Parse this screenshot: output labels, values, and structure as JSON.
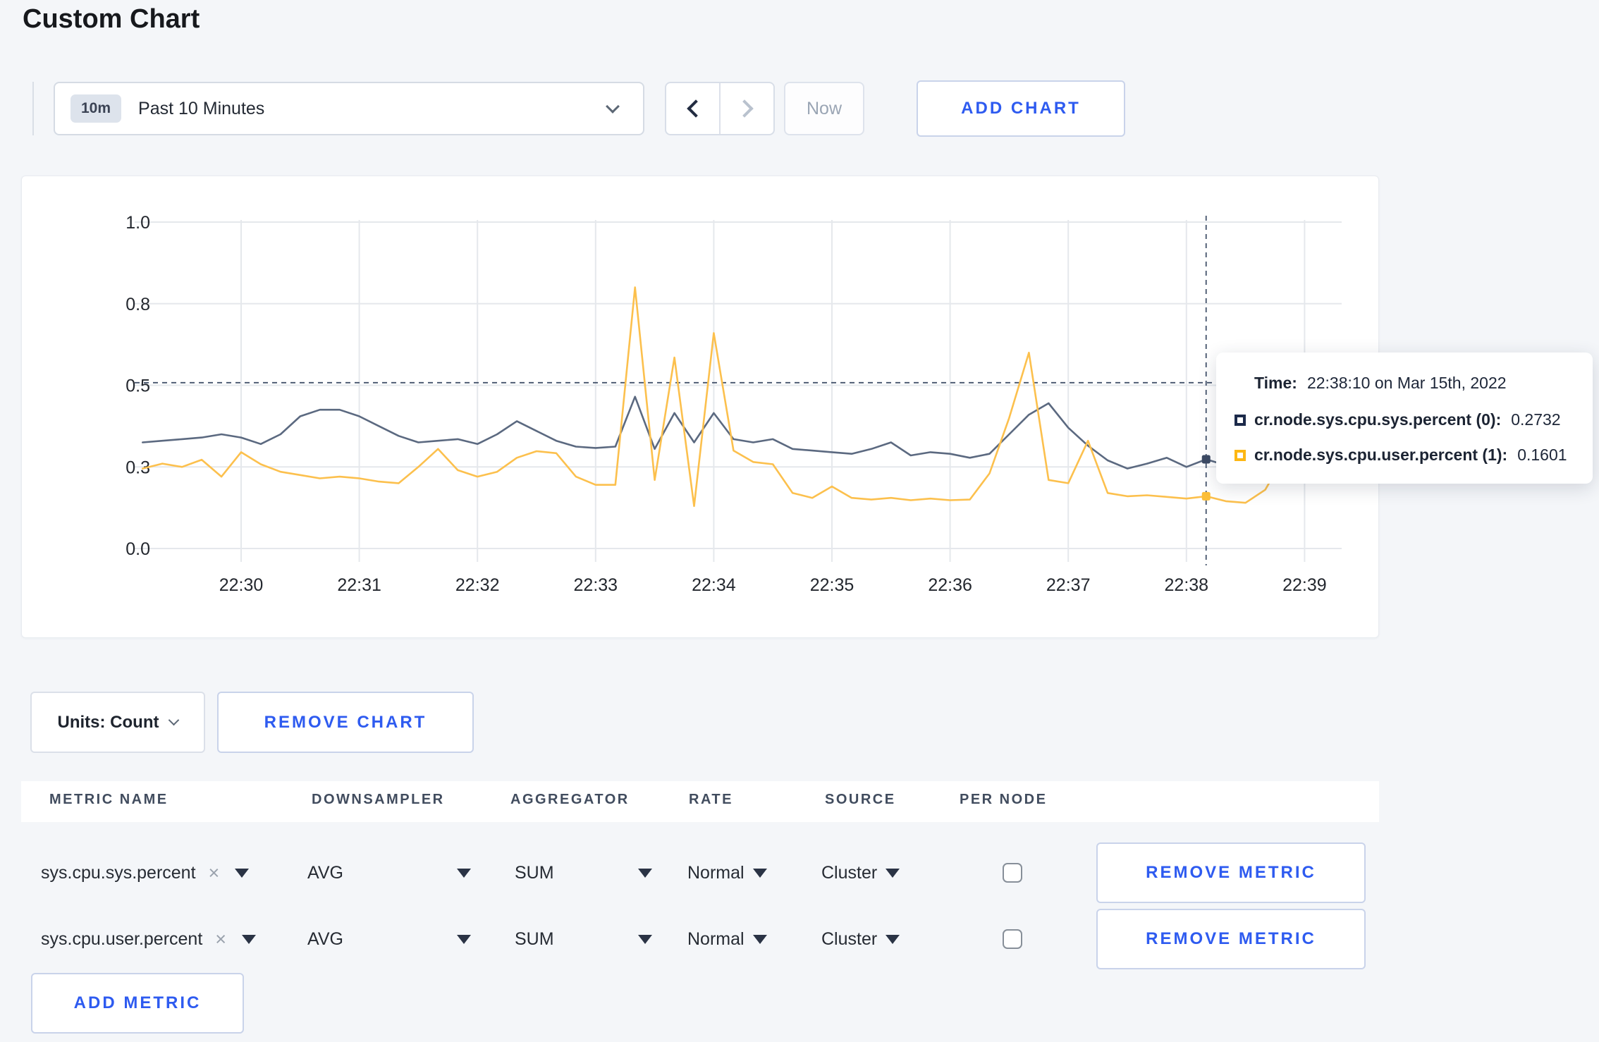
{
  "page": {
    "title": "Custom Chart"
  },
  "toolbar": {
    "range_badge": "10m",
    "range_label": "Past 10 Minutes",
    "now_label": "Now",
    "add_chart_label": "ADD CHART"
  },
  "chart_data": {
    "type": "line",
    "title": "",
    "xlabel": "",
    "ylabel": "",
    "ylim": [
      0,
      1
    ],
    "grid": true,
    "y_ticks": [
      {
        "label": "0.0",
        "value": 0
      },
      {
        "label": "0.3",
        "value": 0.25
      },
      {
        "label": "0.5",
        "value": 0.5
      },
      {
        "label": "0.8",
        "value": 0.75
      },
      {
        "label": "1.0",
        "value": 1
      }
    ],
    "x_tick_labels": [
      "22:30",
      "22:31",
      "22:32",
      "22:33",
      "22:34",
      "22:35",
      "22:36",
      "22:37",
      "22:38",
      "22:39"
    ],
    "x_start_offset_min": -0.8333,
    "x_step_min": 0.16667,
    "series": [
      {
        "name": "cr.node.sys.cpu.sys.percent",
        "color": "#5b6980",
        "dot_color": "#3c4a64",
        "values": [
          0.325,
          0.33,
          0.335,
          0.34,
          0.35,
          0.34,
          0.32,
          0.35,
          0.405,
          0.425,
          0.425,
          0.405,
          0.375,
          0.345,
          0.325,
          0.33,
          0.335,
          0.32,
          0.35,
          0.39,
          0.36,
          0.33,
          0.312,
          0.308,
          0.312,
          0.465,
          0.305,
          0.415,
          0.325,
          0.415,
          0.335,
          0.325,
          0.335,
          0.305,
          0.3,
          0.295,
          0.29,
          0.305,
          0.325,
          0.285,
          0.295,
          0.29,
          0.278,
          0.29,
          0.35,
          0.41,
          0.445,
          0.37,
          0.315,
          0.27,
          0.245,
          0.26,
          0.278,
          0.25,
          0.2732,
          0.255,
          0.27,
          0.26,
          0.255,
          0.26,
          0.255
        ]
      },
      {
        "name": "cr.node.sys.cpu.user.percent",
        "color": "#fcc04d",
        "dot_color": "#fcbe37",
        "values": [
          0.245,
          0.26,
          0.25,
          0.272,
          0.22,
          0.295,
          0.258,
          0.235,
          0.225,
          0.215,
          0.22,
          0.215,
          0.205,
          0.2,
          0.25,
          0.305,
          0.24,
          0.22,
          0.235,
          0.278,
          0.298,
          0.292,
          0.22,
          0.195,
          0.195,
          0.8,
          0.21,
          0.585,
          0.13,
          0.66,
          0.3,
          0.265,
          0.258,
          0.17,
          0.155,
          0.19,
          0.155,
          0.15,
          0.155,
          0.148,
          0.153,
          0.148,
          0.15,
          0.23,
          0.4,
          0.6,
          0.21,
          0.2,
          0.33,
          0.17,
          0.16,
          0.163,
          0.158,
          0.153,
          0.1601,
          0.145,
          0.14,
          0.18,
          0.285,
          0.255,
          0.24
        ]
      }
    ],
    "crosshair": {
      "time_offset_min": 8.1667,
      "hover_value": 0.508,
      "series_values": [
        0.2732,
        0.1601
      ]
    },
    "legend_position": "tooltip"
  },
  "tooltip": {
    "time_label": "Time:",
    "time_value": "22:38:10 on Mar 15th, 2022",
    "entries": [
      {
        "name": "cr.node.sys.cpu.sys.percent (0):",
        "value": "0.2732",
        "swatch": "#1c2a4a"
      },
      {
        "name": "cr.node.sys.cpu.user.percent (1):",
        "value": "0.1601",
        "swatch": "#fdb713"
      }
    ]
  },
  "chart_footer": {
    "units_label": "Units: Count",
    "remove_chart_label": "REMOVE CHART"
  },
  "metrics_table": {
    "columns": [
      "METRIC NAME",
      "DOWNSAMPLER",
      "AGGREGATOR",
      "RATE",
      "SOURCE",
      "PER NODE"
    ],
    "rows": [
      {
        "metric": "sys.cpu.sys.percent",
        "remove_x": "×",
        "downsampler": "AVG",
        "aggregator": "SUM",
        "rate": "Normal",
        "source": "Cluster",
        "per_node_checked": false,
        "remove_label": "REMOVE METRIC"
      },
      {
        "metric": "sys.cpu.user.percent",
        "remove_x": "×",
        "downsampler": "AVG",
        "aggregator": "SUM",
        "rate": "Normal",
        "source": "Cluster",
        "per_node_checked": false,
        "remove_label": "REMOVE METRIC"
      }
    ],
    "add_metric_label": "ADD METRIC"
  },
  "colors": {
    "accent_blue": "#2e5bf0",
    "page_background": "#f4f6f9",
    "gridline": "#e5e8ec",
    "crosshair": "#44536b"
  }
}
